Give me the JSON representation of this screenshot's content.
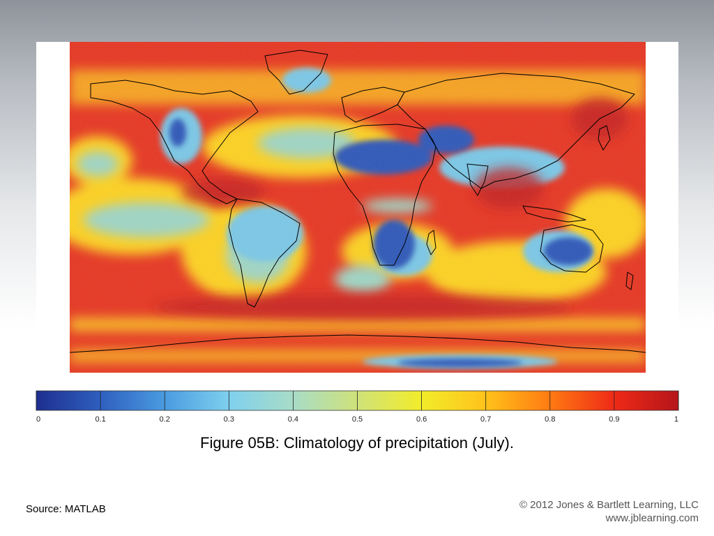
{
  "colorbar": {
    "ticks": [
      "0",
      "0.1",
      "0.2",
      "0.3",
      "0.4",
      "0.5",
      "0.6",
      "0.7",
      "0.8",
      "0.9",
      "1"
    ],
    "range": [
      0,
      1
    ],
    "colormap": [
      "#1d2f8f",
      "#2f5fbf",
      "#4a9be0",
      "#7fd0ee",
      "#a8dcc7",
      "#cfe27a",
      "#f2ec2a",
      "#ffc21a",
      "#ff7a12",
      "#ee2a17",
      "#b5151a"
    ]
  },
  "map": {
    "colors": {
      "ocean_wet": "#e8321e",
      "ocean_mid": "#ffd21f",
      "ocean_dry": "#9fd6c4",
      "land_dry": "#2a55b8",
      "land_semi": "#79c8e8",
      "coast": "#000000"
    }
  },
  "caption": "Figure 05B: Climatology of precipitation (July).",
  "source": "Source: MATLAB",
  "copyright": {
    "line1": "© 2012 Jones & Bartlett Learning, LLC",
    "line2": "www.jblearning.com"
  }
}
